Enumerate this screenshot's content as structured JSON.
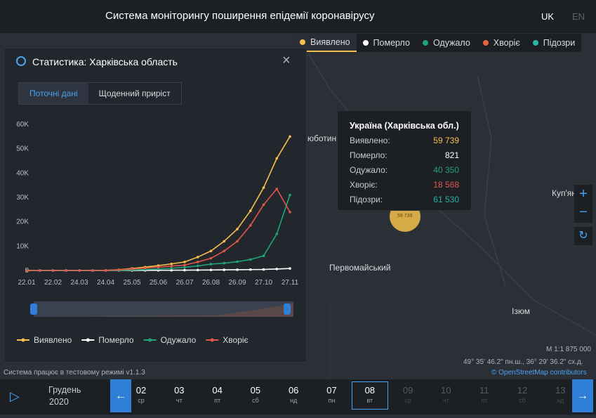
{
  "header": {
    "title": "Система моніторингу поширення епідемії коронавірусу",
    "languages": [
      "UK",
      "EN"
    ]
  },
  "layers": [
    {
      "label": "Виявлено",
      "color": "#f5c04a"
    },
    {
      "label": "Померло",
      "color": "#ffffff"
    },
    {
      "label": "Одужало",
      "color": "#1fa37a"
    },
    {
      "label": "Хворіє",
      "color": "#e8633f"
    },
    {
      "label": "Підозри",
      "color": "#2bb3a5"
    }
  ],
  "panel": {
    "title": "Статистика: Харківська область",
    "tabs": [
      "Поточні дані",
      "Щоденний приріст"
    ]
  },
  "chart_data": {
    "type": "line",
    "categories": [
      "22.01",
      null,
      "22.02",
      null,
      "24.03",
      null,
      "24.04",
      null,
      "25.05",
      null,
      "25.06",
      null,
      "26.07",
      null,
      "26.08",
      null,
      "26.09",
      null,
      "27.10",
      null,
      "27.11"
    ],
    "ylim": [
      0,
      60000
    ],
    "yticks": [
      0,
      {
        "value": 10000,
        "label": "10K"
      },
      {
        "value": 20000,
        "label": "20K"
      },
      {
        "value": 30000,
        "label": "30K"
      },
      {
        "value": 40000,
        "label": "40K"
      },
      {
        "value": 50000,
        "label": "50K"
      },
      {
        "value": 60000,
        "label": "60K"
      }
    ],
    "series": [
      {
        "name": "Виявлено",
        "color": "#f5c04a",
        "values": [
          0,
          0,
          0,
          0,
          0,
          0,
          50,
          300,
          800,
          1400,
          2000,
          2700,
          3500,
          5500,
          8000,
          12000,
          17000,
          24500,
          34000,
          46000,
          55000
        ]
      },
      {
        "name": "Померло",
        "color": "#ffffff",
        "values": [
          0,
          0,
          0,
          0,
          0,
          0,
          1,
          5,
          20,
          40,
          70,
          100,
          130,
          170,
          210,
          260,
          310,
          360,
          420,
          600,
          821
        ]
      },
      {
        "name": "Одужало",
        "color": "#1fa37a",
        "values": [
          0,
          0,
          0,
          0,
          0,
          0,
          10,
          50,
          200,
          400,
          600,
          900,
          1300,
          1900,
          2600,
          3000,
          3600,
          4500,
          6000,
          15000,
          31000
        ]
      },
      {
        "name": "Хворіє",
        "color": "#e0574a",
        "values": [
          0,
          0,
          0,
          0,
          0,
          0,
          40,
          250,
          600,
          1000,
          1400,
          1800,
          2200,
          3500,
          5000,
          8000,
          12000,
          18500,
          27000,
          33500,
          24000
        ]
      }
    ]
  },
  "tooltip": {
    "title": "Україна (Харківська обл.)",
    "rows": [
      {
        "label": "Виявлено:",
        "value": "59 739",
        "color": "#f5c04a"
      },
      {
        "label": "Померло:",
        "value": "821",
        "color": "#ffffff"
      },
      {
        "label": "Одужало:",
        "value": "40 350",
        "color": "#1fa37a"
      },
      {
        "label": "Хворіє:",
        "value": "18 568",
        "color": "#e0574a"
      },
      {
        "label": "Підозри:",
        "value": "61 530",
        "color": "#2bb3a5"
      }
    ]
  },
  "map": {
    "labels": [
      "юботин",
      "Первомайський",
      "Ізюм",
      "Куп'ян"
    ],
    "cluster": "59 739",
    "scale": "М 1:1 875 000",
    "coords": "49° 35' 46.2\" пн.ш., 36° 29' 36.2\" сх.д.",
    "attribution": "© OpenStreetMap contributors"
  },
  "status": "Система працює в тестовому режимі v1.1.3",
  "timeline": {
    "month": "Грудень",
    "year": "2020",
    "days": [
      {
        "day": "02",
        "weekday": "ср"
      },
      {
        "day": "03",
        "weekday": "чт"
      },
      {
        "day": "04",
        "weekday": "пт"
      },
      {
        "day": "05",
        "weekday": "сб"
      },
      {
        "day": "06",
        "weekday": "нд"
      },
      {
        "day": "07",
        "weekday": "пн"
      },
      {
        "day": "08",
        "weekday": "вт"
      },
      {
        "day": "09",
        "weekday": "ср"
      },
      {
        "day": "10",
        "weekday": "чт"
      },
      {
        "day": "11",
        "weekday": "пт"
      },
      {
        "day": "12",
        "weekday": "сб"
      },
      {
        "day": "13",
        "weekday": "нд"
      }
    ]
  }
}
